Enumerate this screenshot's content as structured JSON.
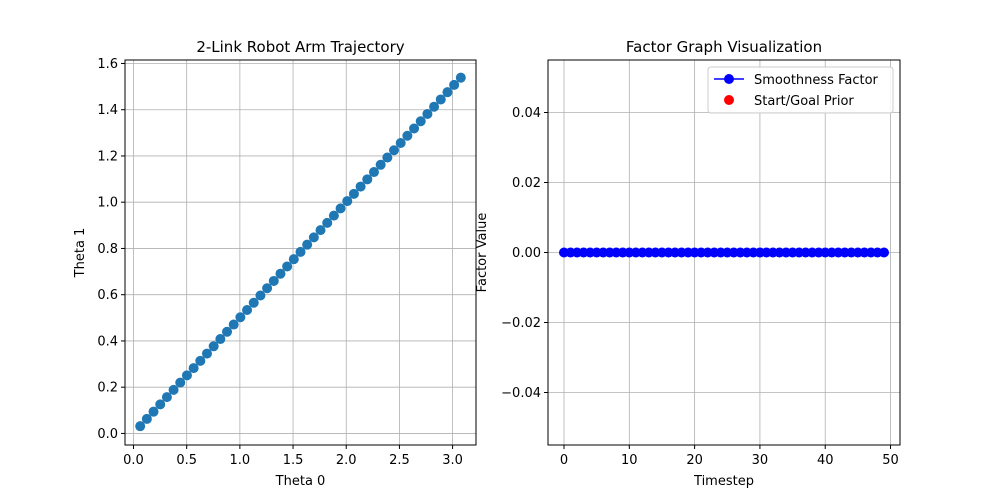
{
  "chart_data": [
    {
      "type": "scatter",
      "title": "2-Link Robot Arm Trajectory",
      "xlabel": "Theta 0",
      "ylabel": "Theta 1",
      "xlim": [
        -0.08,
        3.22
      ],
      "ylim": [
        -0.05,
        1.615
      ],
      "xticks": [
        0.0,
        0.5,
        1.0,
        1.5,
        2.0,
        2.5,
        3.0
      ],
      "yticks": [
        0.0,
        0.2,
        0.4,
        0.6,
        0.8,
        1.0,
        1.2,
        1.4,
        1.6
      ],
      "xtick_labels": [
        "0.0",
        "0.5",
        "1.0",
        "1.5",
        "2.0",
        "2.5",
        "3.0"
      ],
      "ytick_labels": [
        "0.0",
        "0.2",
        "0.4",
        "0.6",
        "0.8",
        "1.0",
        "1.2",
        "1.4",
        "1.6"
      ],
      "grid": true,
      "color": "#1f77b4",
      "points": {
        "x_start": 0.0628,
        "x_step": 0.0628,
        "y_start": 0.0314,
        "y_step": 0.0314,
        "count": 49
      }
    },
    {
      "type": "line",
      "title": "Factor Graph Visualization",
      "xlabel": "Timestep",
      "ylabel": "Factor Value",
      "xlim": [
        -2.45,
        51.45
      ],
      "ylim": [
        -0.055,
        0.055
      ],
      "xticks": [
        0,
        10,
        20,
        30,
        40,
        50
      ],
      "yticks": [
        -0.04,
        -0.02,
        0.0,
        0.02,
        0.04
      ],
      "xtick_labels": [
        "0",
        "10",
        "20",
        "30",
        "40",
        "50"
      ],
      "ytick_labels": [
        "−0.04",
        "−0.02",
        "0.00",
        "0.02",
        "0.04"
      ],
      "grid": true,
      "legend": {
        "placement": "top-right",
        "entries": [
          {
            "label": "Smoothness Factor",
            "color": "#0000ff",
            "marker": "line-dot"
          },
          {
            "label": "Start/Goal Prior",
            "color": "#ff0000",
            "marker": "dot"
          }
        ]
      },
      "series": [
        {
          "name": "Smoothness Factor",
          "color": "#0000ff",
          "x": [
            0,
            1,
            2,
            3,
            4,
            5,
            6,
            7,
            8,
            9,
            10,
            11,
            12,
            13,
            14,
            15,
            16,
            17,
            18,
            19,
            20,
            21,
            22,
            23,
            24,
            25,
            26,
            27,
            28,
            29,
            30,
            31,
            32,
            33,
            34,
            35,
            36,
            37,
            38,
            39,
            40,
            41,
            42,
            43,
            44,
            45,
            46,
            47,
            48,
            49
          ],
          "y": [
            0,
            0,
            0,
            0,
            0,
            0,
            0,
            0,
            0,
            0,
            0,
            0,
            0,
            0,
            0,
            0,
            0,
            0,
            0,
            0,
            0,
            0,
            0,
            0,
            0,
            0,
            0,
            0,
            0,
            0,
            0,
            0,
            0,
            0,
            0,
            0,
            0,
            0,
            0,
            0,
            0,
            0,
            0,
            0,
            0,
            0,
            0,
            0,
            0,
            0
          ]
        }
      ]
    }
  ]
}
